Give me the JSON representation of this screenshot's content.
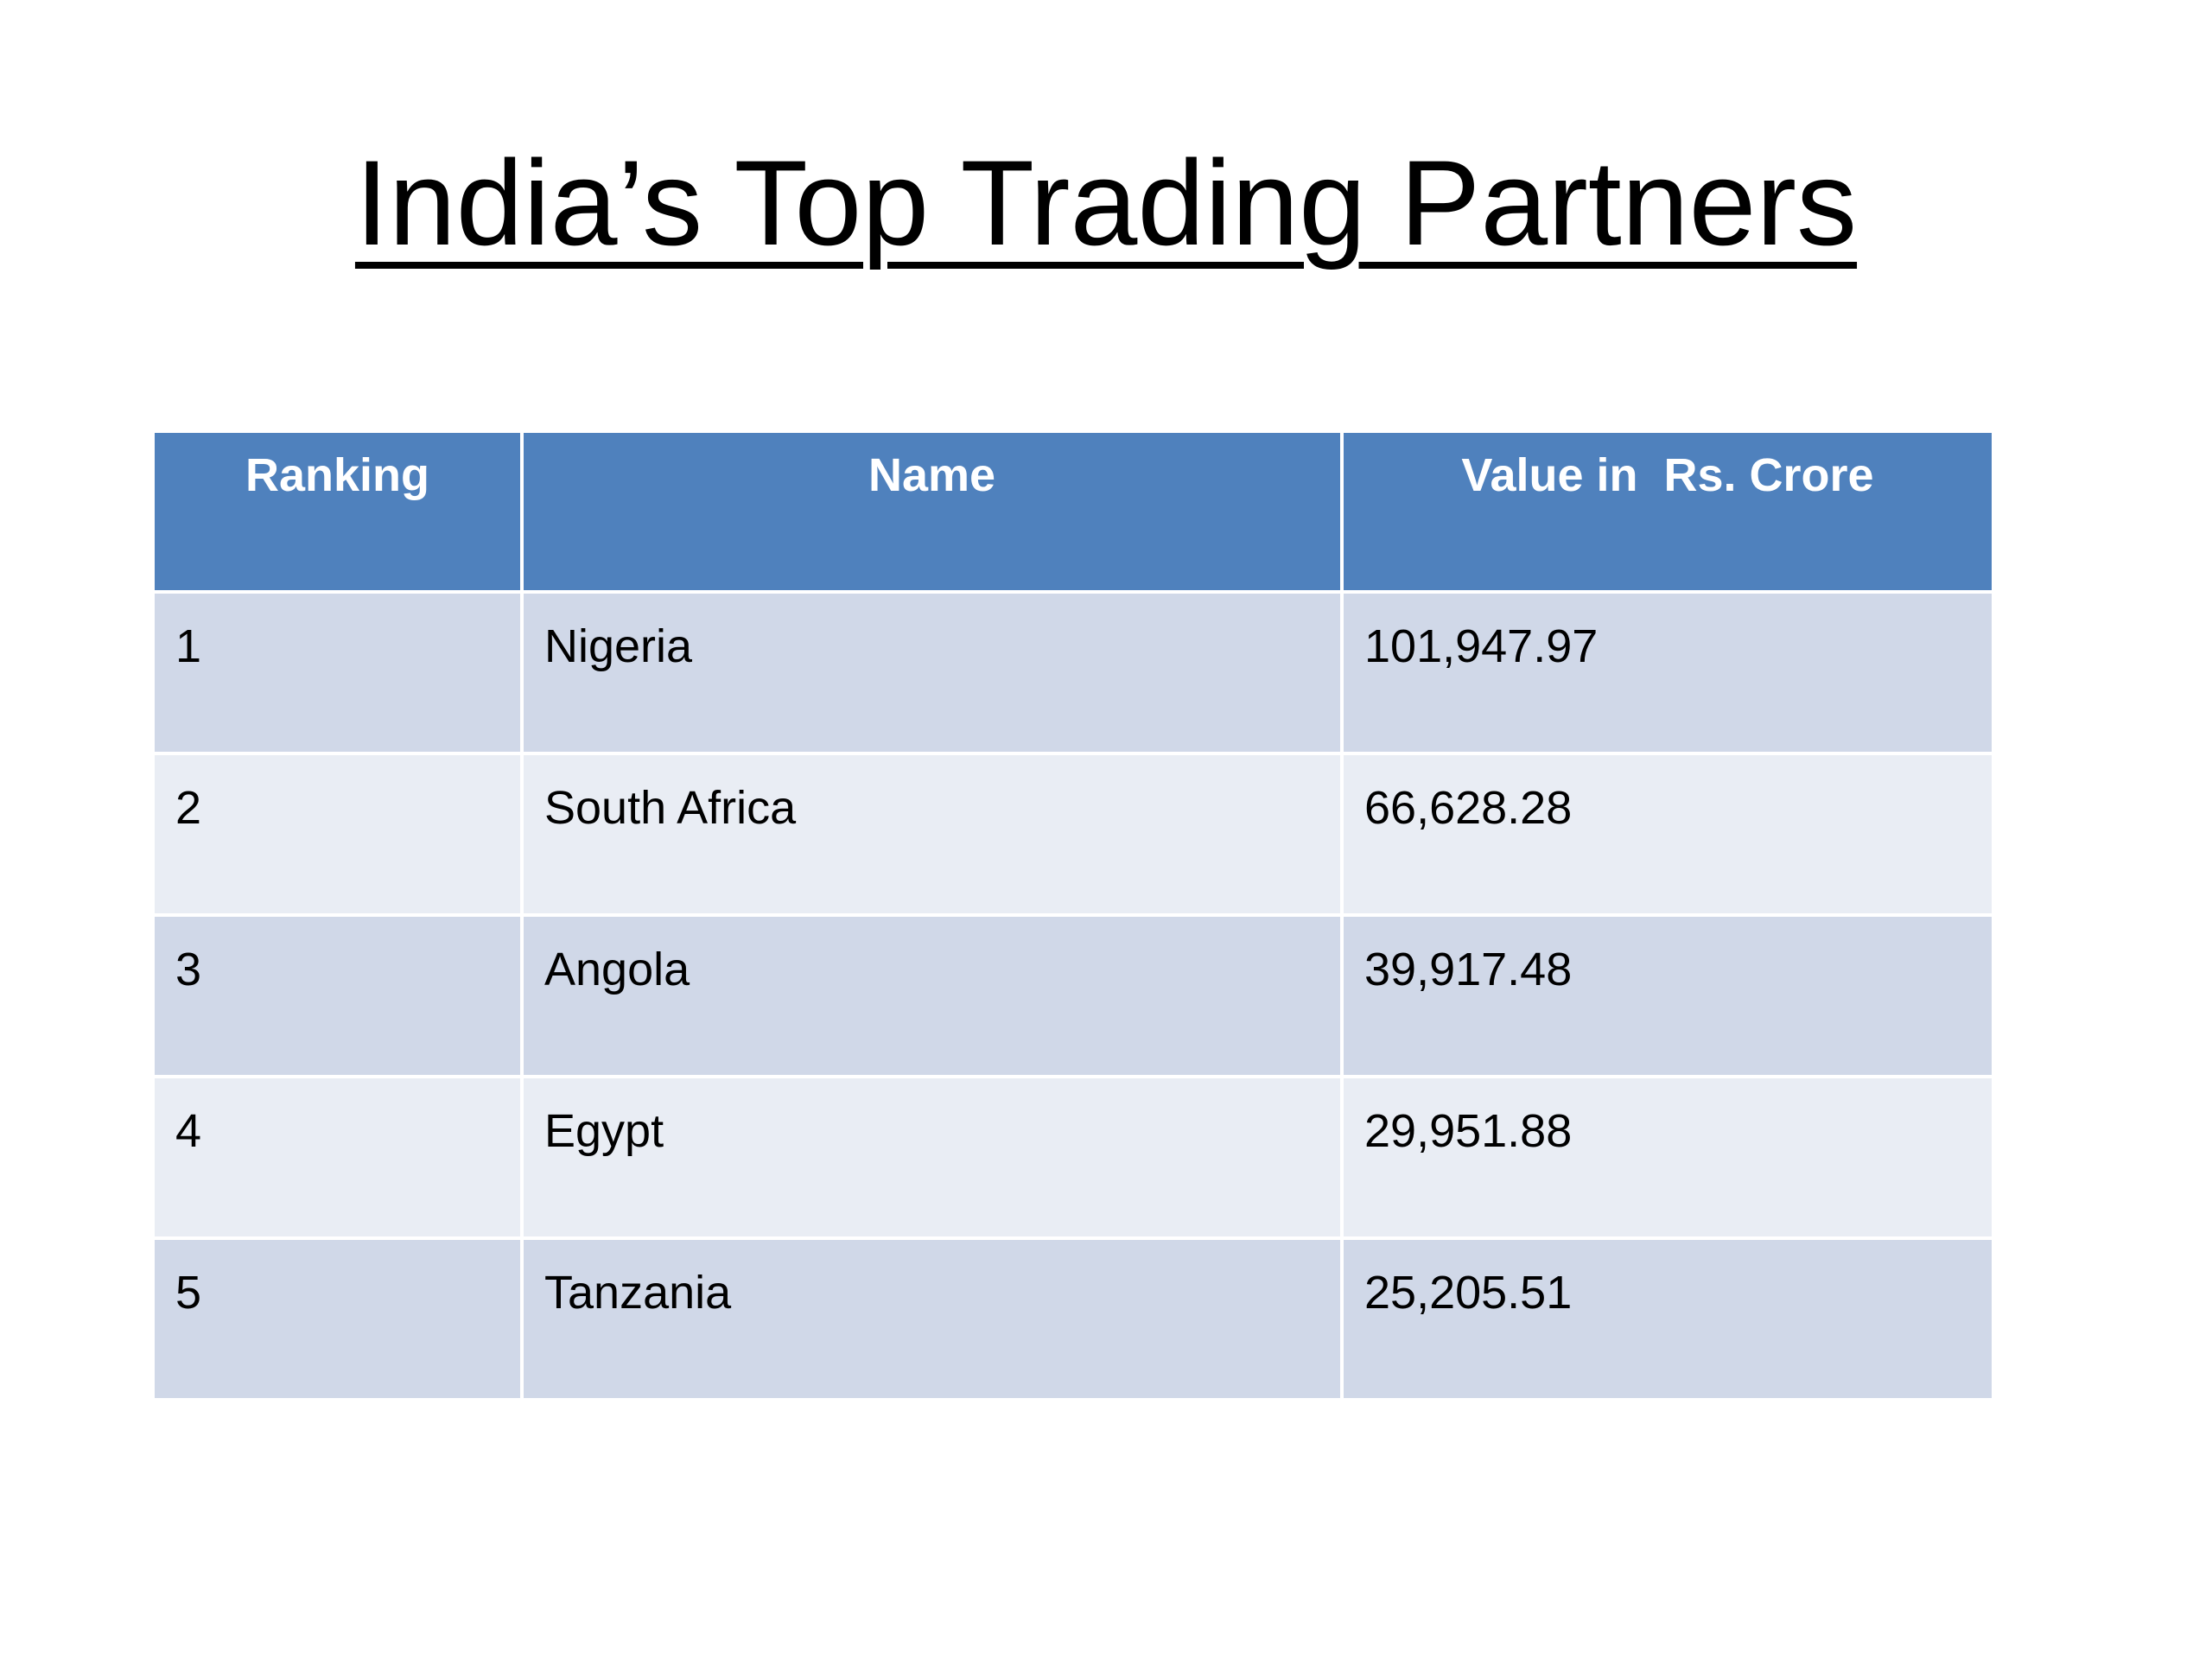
{
  "header": {
    "title": "India’s Top Trading Partners"
  },
  "table": {
    "columns": [
      "Ranking",
      "Name",
      "Value in  Rs. Crore"
    ],
    "rows": [
      [
        "1",
        "Nigeria",
        "101,947.97"
      ],
      [
        "2",
        "South Africa",
        "66,628.28"
      ],
      [
        "3",
        "Angola",
        "39,917.48"
      ],
      [
        "4",
        "Egypt",
        "29,951.88"
      ],
      [
        "5",
        "Tanzania",
        "25,205.51"
      ]
    ]
  }
}
